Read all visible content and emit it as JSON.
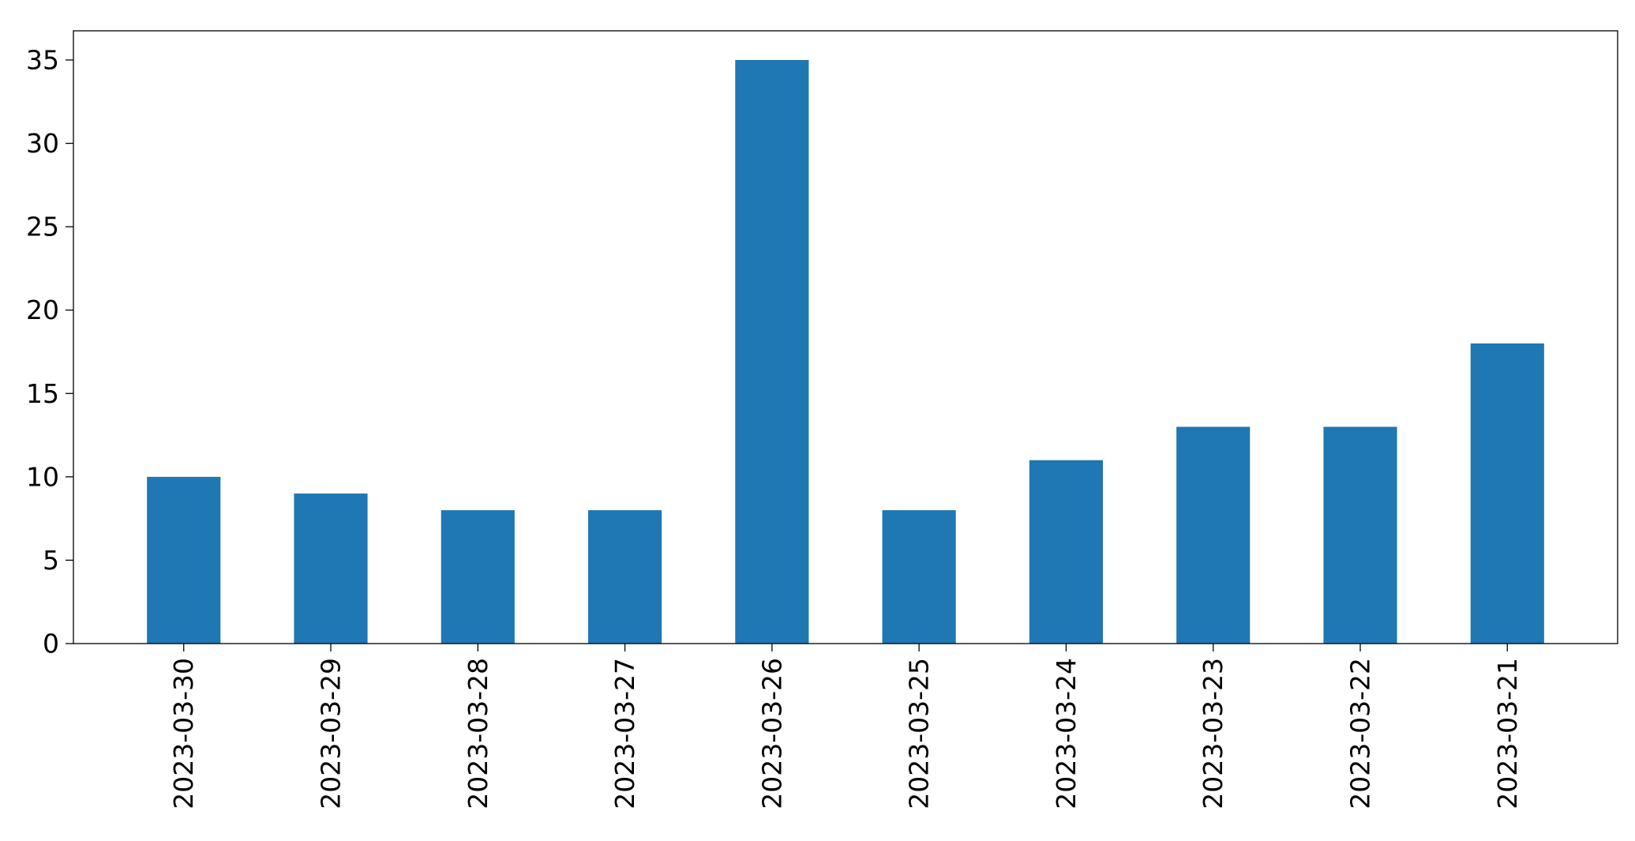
{
  "chart_data": {
    "type": "bar",
    "title": "",
    "xlabel": "",
    "ylabel": "",
    "categories": [
      "2023-03-30",
      "2023-03-29",
      "2023-03-28",
      "2023-03-27",
      "2023-03-26",
      "2023-03-25",
      "2023-03-24",
      "2023-03-23",
      "2023-03-22",
      "2023-03-21"
    ],
    "values": [
      10,
      9,
      8,
      8,
      35,
      8,
      11,
      13,
      13,
      18
    ],
    "ylim": [
      0,
      36.75
    ],
    "yticks": [
      0,
      5,
      10,
      15,
      20,
      25,
      30,
      35
    ],
    "x_tick_rotation": "vertical",
    "bar_color": "#1f77b4",
    "grid": false,
    "legend": false
  }
}
